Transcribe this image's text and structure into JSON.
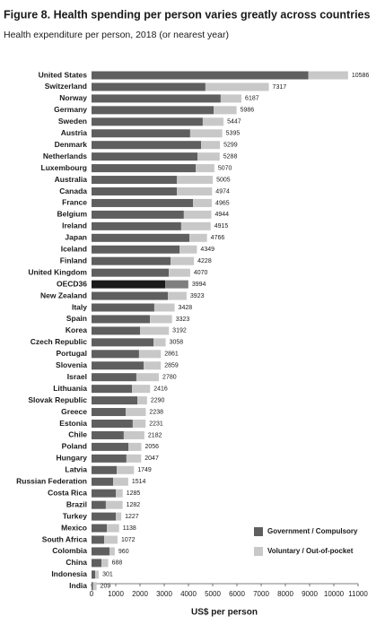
{
  "chart_data": {
    "type": "stacked-barh",
    "title": "Figure 8. Health spending per person varies greatly across countries",
    "subtitle": "Health expenditure per person, 2018 (or nearest year)",
    "x_label": "US$ per person",
    "categories": [
      "United States",
      "Switzerland",
      "Norway",
      "Germany",
      "Sweden",
      "Austria",
      "Denmark",
      "Netherlands",
      "Luxembourg",
      "Australia",
      "Canada",
      "France",
      "Belgium",
      "Ireland",
      "Japan",
      "Iceland",
      "Finland",
      "United Kingdom",
      "OECD36",
      "New Zealand",
      "Italy",
      "Spain",
      "Korea",
      "Czech Republic",
      "Portugal",
      "Slovenia",
      "Israel",
      "Lithuania",
      "Slovak Republic",
      "Greece",
      "Estonia",
      "Chile",
      "Poland",
      "Hungary",
      "Latvia",
      "Russian Federation",
      "Costa Rica",
      "Brazil",
      "Turkey",
      "Mexico",
      "South Africa",
      "Colombia",
      "China",
      "Indonesia",
      "India"
    ],
    "series": [
      {
        "name": "Government / Compulsory",
        "color": "#5f5f5f",
        "values": [
          8950,
          4700,
          5330,
          5040,
          4590,
          4070,
          4520,
          4370,
          4300,
          3520,
          3520,
          4190,
          3810,
          3700,
          4040,
          3630,
          3260,
          3190,
          3040,
          3150,
          2590,
          2410,
          2000,
          2560,
          1960,
          2150,
          1850,
          1670,
          1890,
          1410,
          1700,
          1330,
          1520,
          1440,
          1040,
          890,
          1000,
          590,
          1000,
          630,
          520,
          740,
          410,
          150,
          60
        ]
      },
      {
        "name": "Voluntary / Out-of-pocket",
        "color": "#c8c8c8",
        "values": [
          1636,
          2617,
          857,
          946,
          857,
          1325,
          779,
          918,
          770,
          1485,
          1454,
          775,
          1134,
          1215,
          726,
          719,
          968,
          880,
          954,
          773,
          838,
          913,
          1192,
          498,
          901,
          709,
          930,
          746,
          400,
          828,
          531,
          852,
          536,
          607,
          709,
          624,
          285,
          692,
          227,
          508,
          552,
          220,
          278,
          151,
          149
        ]
      }
    ],
    "totals": [
      10586,
      7317,
      6187,
      5986,
      5447,
      5395,
      5299,
      5288,
      5070,
      5005,
      4974,
      4965,
      4944,
      4915,
      4766,
      4349,
      4228,
      4070,
      3994,
      3923,
      3428,
      3323,
      3192,
      3058,
      2861,
      2859,
      2780,
      2416,
      2290,
      2238,
      2231,
      2182,
      2056,
      2047,
      1749,
      1514,
      1285,
      1282,
      1227,
      1138,
      1072,
      960,
      688,
      301,
      209
    ],
    "highlight": {
      "category": "OECD36",
      "colors": [
        "#1a1a1a",
        "#7f7f7f"
      ]
    },
    "xlim": [
      0,
      11000
    ],
    "xticks": [
      0,
      1000,
      2000,
      3000,
      4000,
      5000,
      6000,
      7000,
      8000,
      9000,
      10000,
      11000
    ],
    "legend": "bottom-right"
  }
}
